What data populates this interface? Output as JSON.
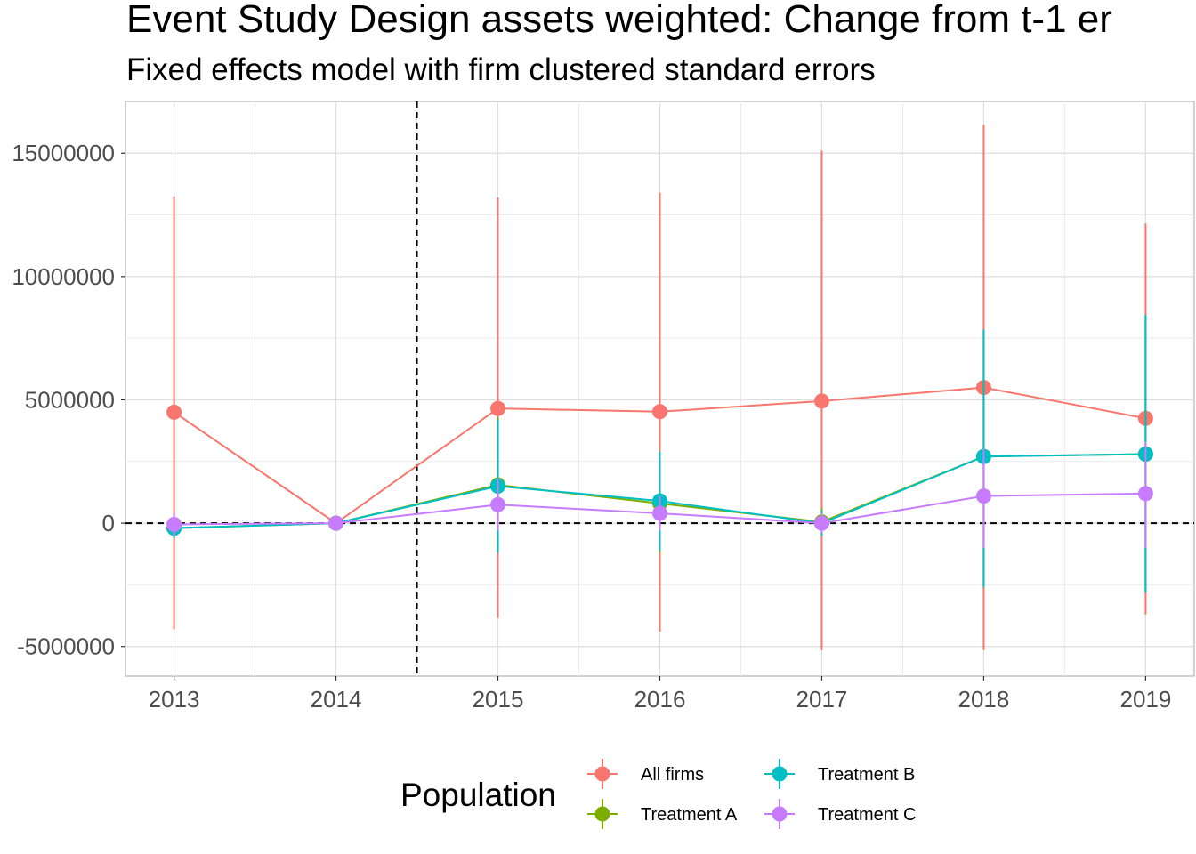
{
  "chart_data": {
    "type": "line",
    "title": "Event Study Design assets weighted: Change from t-1 er",
    "subtitle": "Fixed effects model with firm clustered standard errors",
    "xlabel": "",
    "ylabel": "",
    "x": [
      2013,
      2014,
      2015,
      2016,
      2017,
      2018,
      2019
    ],
    "x_tick_labels": [
      "2013",
      "2014",
      "2015",
      "2016",
      "2017",
      "2018",
      "2019"
    ],
    "y_ticks": [
      -5000000,
      0,
      5000000,
      10000000,
      15000000
    ],
    "y_tick_labels": [
      "-5000000",
      "0",
      "5000000",
      "10000000",
      "15000000"
    ],
    "xlim": [
      2012.7,
      2019.3
    ],
    "ylim": [
      -6200000,
      17100000
    ],
    "grid": true,
    "reference_lines": {
      "vertical_x": 2014.5,
      "horizontal_y": 0,
      "style": "dashed"
    },
    "legend": {
      "title": "Population",
      "position": "bottom"
    },
    "series": [
      {
        "name": "All firms",
        "color": "#F8766D",
        "values": [
          4500000,
          0,
          4650000,
          4520000,
          4950000,
          5500000,
          4250000
        ],
        "lower": [
          -4300000,
          0,
          -3850000,
          -4400000,
          -5150000,
          -5150000,
          -3700000
        ],
        "upper": [
          13250000,
          0,
          13200000,
          13400000,
          15100000,
          16150000,
          12150000
        ]
      },
      {
        "name": "Treatment A",
        "color": "#7CAE00",
        "values": [
          -200000,
          0,
          1550000,
          800000,
          50000,
          2700000,
          2800000
        ],
        "lower": [
          -600000,
          0,
          -1200000,
          -1200000,
          -500000,
          -2600000,
          -2800000
        ],
        "upper": [
          200000,
          0,
          4300000,
          2800000,
          600000,
          7800000,
          8400000
        ]
      },
      {
        "name": "Treatment B",
        "color": "#00BFC4",
        "values": [
          -200000,
          0,
          1500000,
          900000,
          0,
          2700000,
          2800000
        ],
        "lower": [
          -600000,
          0,
          -1200000,
          -1100000,
          -500000,
          -2600000,
          -2800000
        ],
        "upper": [
          200000,
          0,
          4200000,
          2900000,
          500000,
          7850000,
          8450000
        ]
      },
      {
        "name": "Treatment C",
        "color": "#C77CFF",
        "values": [
          -50000,
          0,
          750000,
          400000,
          0,
          1100000,
          1200000
        ],
        "lower": [
          -500000,
          0,
          -300000,
          -300000,
          -400000,
          -1000000,
          -1000000
        ],
        "upper": [
          400000,
          0,
          1800000,
          1100000,
          400000,
          3000000,
          3300000
        ]
      }
    ]
  }
}
